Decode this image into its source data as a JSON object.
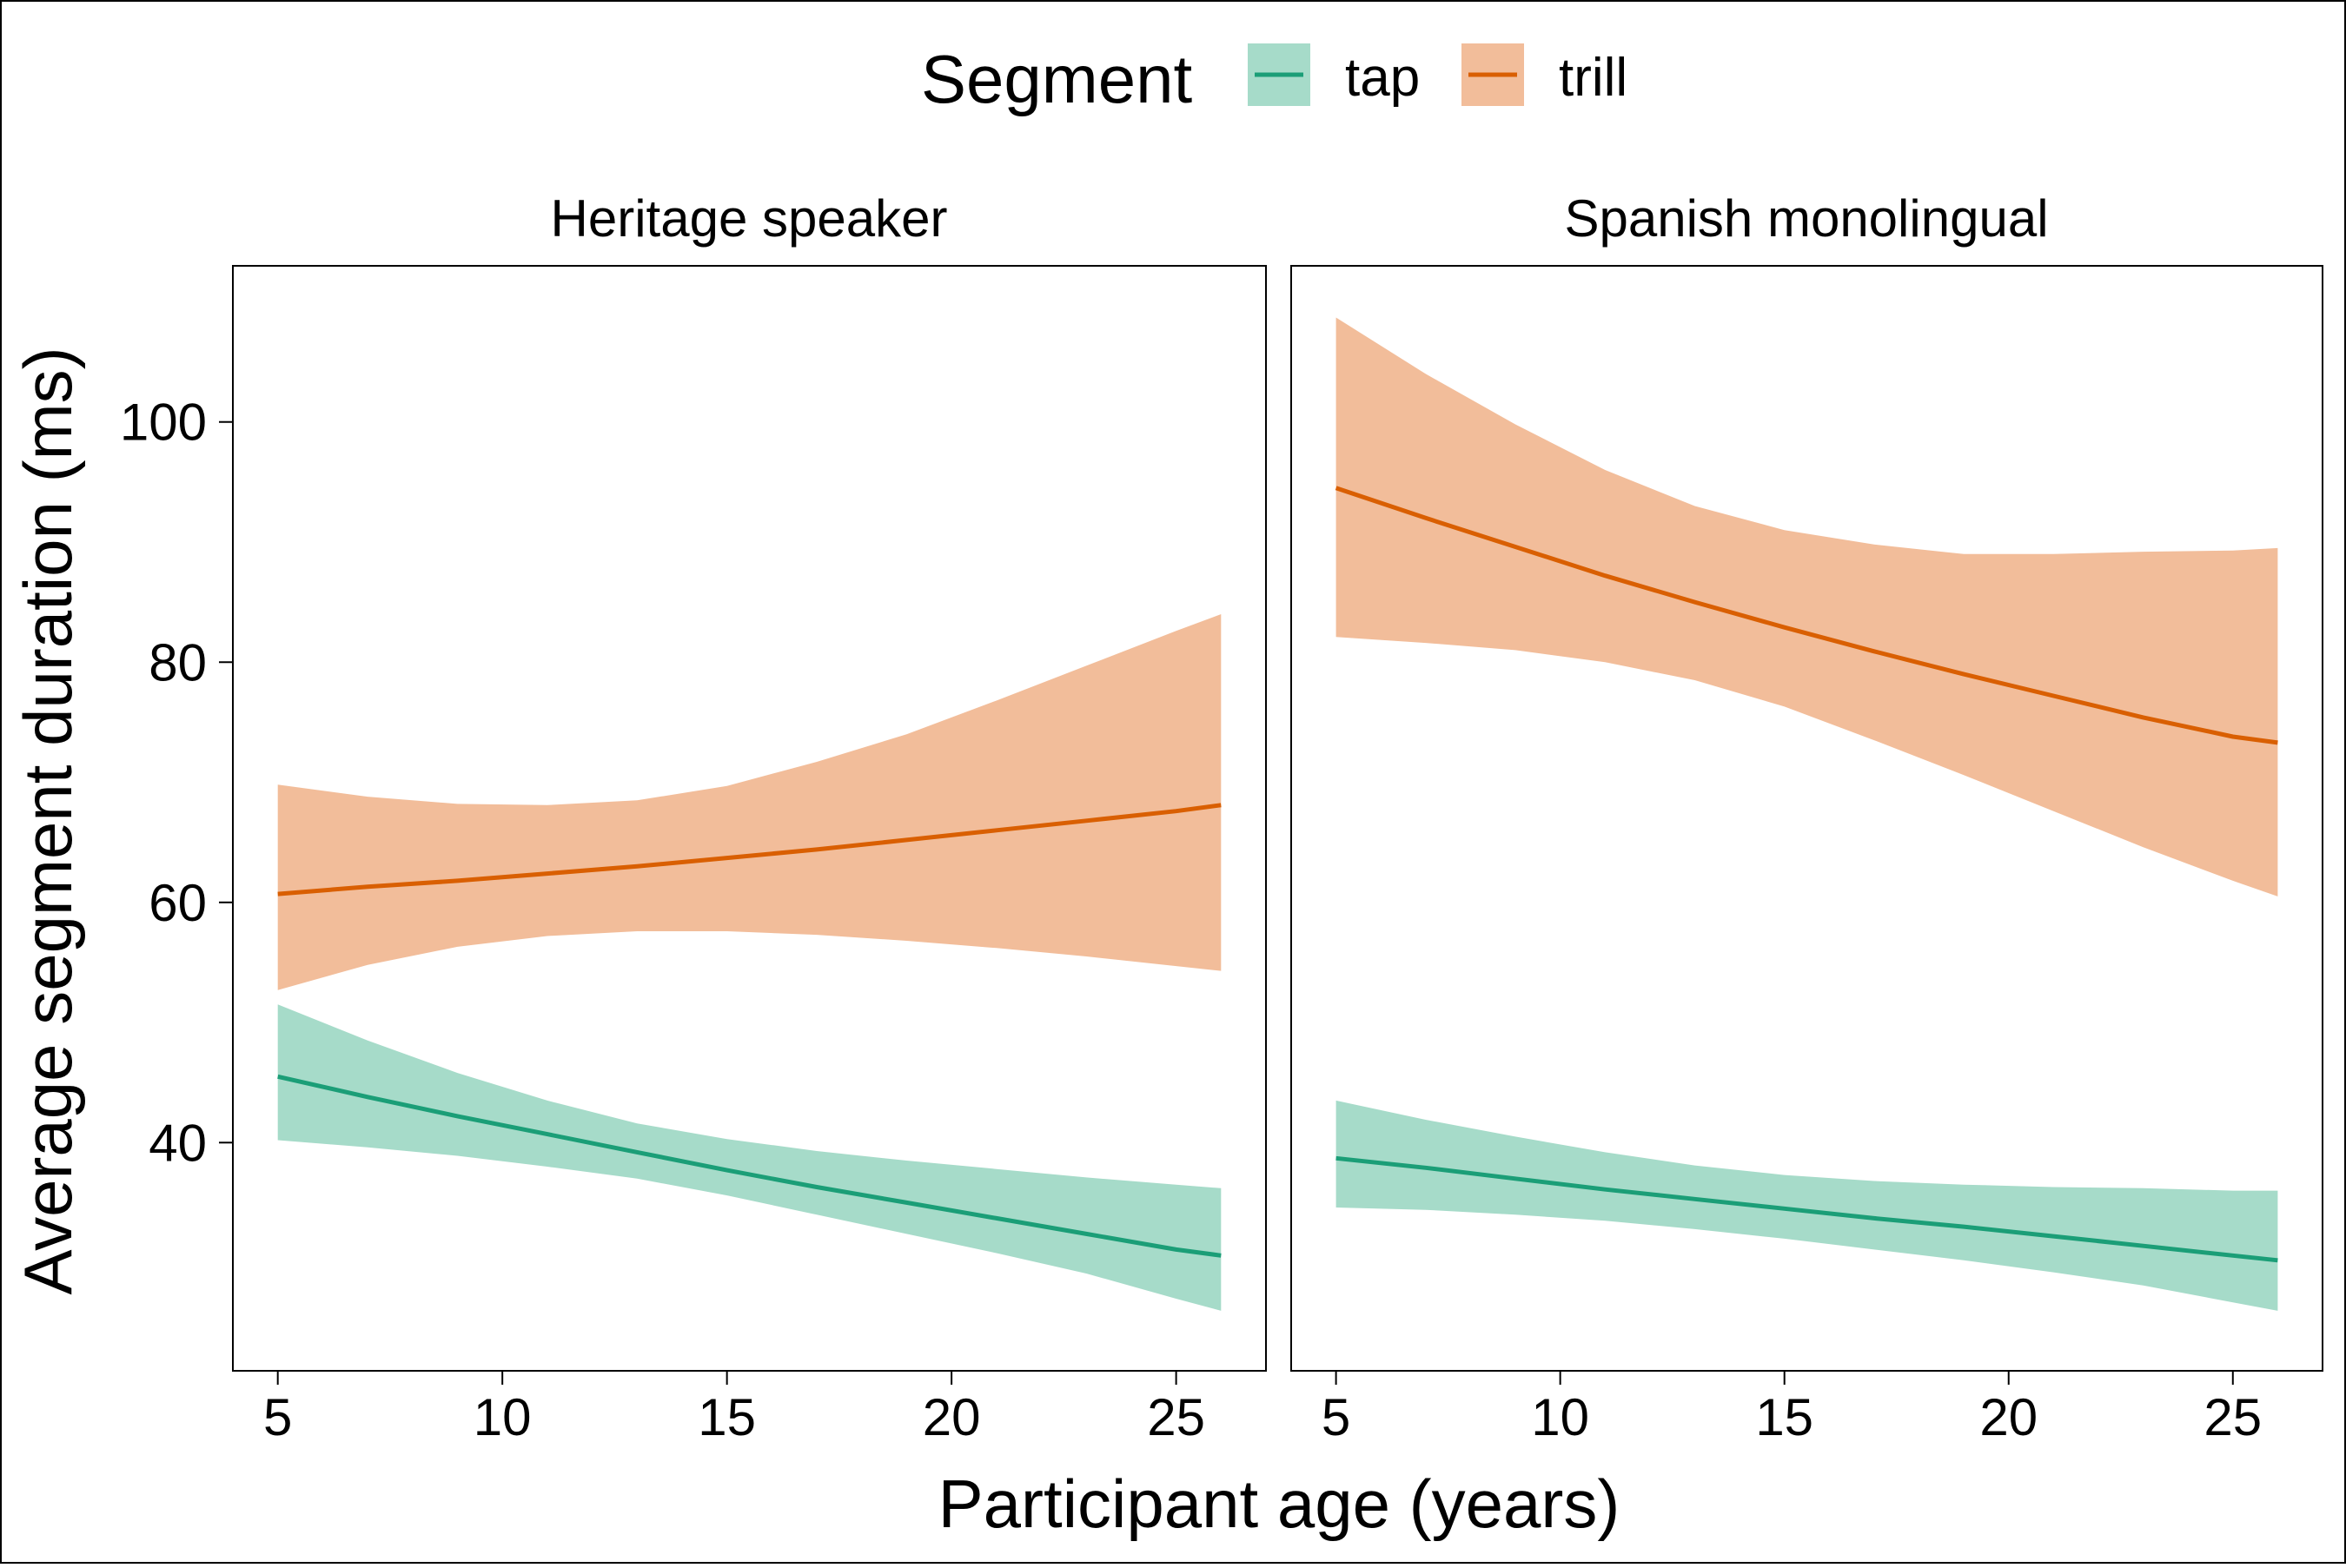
{
  "colors": {
    "tap_line": "#1b9e77",
    "tap_band": "#a6dbc9",
    "trill_line": "#d95f02",
    "trill_band": "#f2bd9a"
  },
  "legend": {
    "title": "Segment",
    "items": [
      {
        "label": "tap",
        "series": "tap"
      },
      {
        "label": "trill",
        "series": "trill"
      }
    ]
  },
  "chart_data": {
    "type": "line",
    "xlabel": "Participant age (years)",
    "ylabel": "Average segment duration (ms)",
    "xlim": [
      4,
      27
    ],
    "ylim": [
      21,
      113
    ],
    "xticks": [
      5,
      10,
      15,
      20,
      25
    ],
    "yticks": [
      40,
      60,
      80,
      100
    ],
    "legend_position": "top",
    "grid": false,
    "panels": [
      {
        "title": "Heritage speaker",
        "series": [
          {
            "name": "tap",
            "x": [
              5,
              7,
              9,
              11,
              13,
              15,
              17,
              19,
              21,
              23,
              25,
              26
            ],
            "y": [
              45.5,
              43.8,
              42.2,
              40.7,
              39.2,
              37.7,
              36.3,
              35.0,
              33.7,
              32.4,
              31.1,
              30.6
            ],
            "lower": [
              40.2,
              39.6,
              38.9,
              38.0,
              37.0,
              35.6,
              34.0,
              32.4,
              30.8,
              29.1,
              27.0,
              26.0
            ],
            "upper": [
              51.5,
              48.5,
              45.8,
              43.5,
              41.6,
              40.3,
              39.3,
              38.5,
              37.8,
              37.1,
              36.5,
              36.2
            ]
          },
          {
            "name": "trill",
            "x": [
              5,
              7,
              9,
              11,
              13,
              15,
              17,
              19,
              21,
              23,
              25,
              26
            ],
            "y": [
              60.7,
              61.3,
              61.8,
              62.4,
              63.0,
              63.7,
              64.4,
              65.2,
              66.0,
              66.8,
              67.6,
              68.1
            ],
            "lower": [
              52.7,
              54.8,
              56.3,
              57.2,
              57.6,
              57.6,
              57.3,
              56.8,
              56.2,
              55.5,
              54.7,
              54.3
            ],
            "upper": [
              69.8,
              68.8,
              68.2,
              68.1,
              68.5,
              69.7,
              71.7,
              74.0,
              76.8,
              79.7,
              82.6,
              84.0
            ]
          }
        ]
      },
      {
        "title": "Spanish monolingual",
        "series": [
          {
            "name": "tap",
            "x": [
              5,
              7,
              9,
              11,
              13,
              15,
              17,
              19,
              21,
              23,
              25,
              26
            ],
            "y": [
              38.7,
              37.9,
              37.0,
              36.1,
              35.3,
              34.5,
              33.7,
              33.0,
              32.2,
              31.4,
              30.6,
              30.2
            ],
            "lower": [
              34.6,
              34.4,
              34.0,
              33.5,
              32.8,
              32.0,
              31.1,
              30.2,
              29.2,
              28.1,
              26.7,
              26.0
            ],
            "upper": [
              43.5,
              41.9,
              40.5,
              39.2,
              38.1,
              37.3,
              36.8,
              36.5,
              36.3,
              36.2,
              36.0,
              36.0
            ]
          },
          {
            "name": "trill",
            "x": [
              5,
              7,
              9,
              11,
              13,
              15,
              17,
              19,
              21,
              23,
              25,
              26
            ],
            "y": [
              94.5,
              92.0,
              89.6,
              87.2,
              85.0,
              82.9,
              80.9,
              79.0,
              77.2,
              75.4,
              73.8,
              73.3
            ],
            "lower": [
              82.1,
              81.6,
              81.0,
              80.0,
              78.5,
              76.3,
              73.5,
              70.6,
              67.6,
              64.6,
              61.8,
              60.5
            ],
            "upper": [
              108.7,
              104.0,
              99.8,
              96.0,
              93.0,
              91.0,
              89.8,
              89.0,
              89.0,
              89.2,
              89.3,
              89.5
            ]
          }
        ]
      }
    ]
  }
}
